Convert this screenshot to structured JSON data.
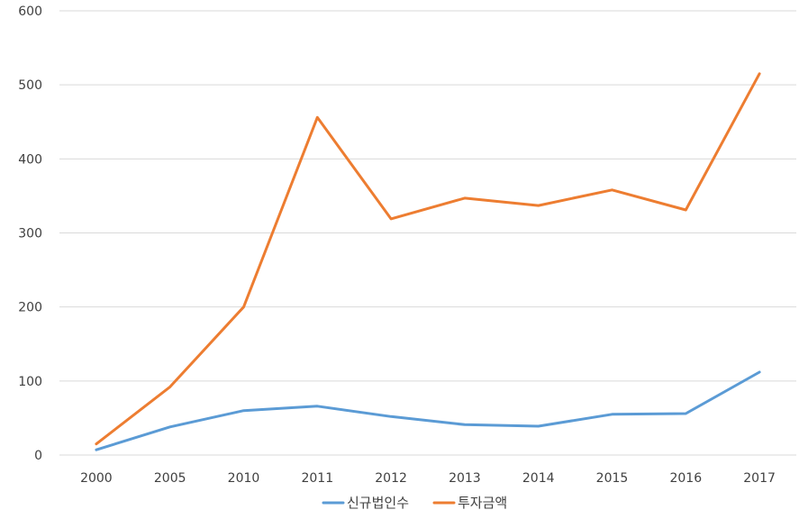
{
  "chart_data": {
    "type": "line",
    "title": "",
    "xlabel": "",
    "ylabel": "",
    "x": [
      "2000",
      "2005",
      "2010",
      "2011",
      "2012",
      "2013",
      "2014",
      "2015",
      "2016",
      "2017"
    ],
    "ylim": [
      0,
      600
    ],
    "yticks": [
      0,
      100,
      200,
      300,
      400,
      500,
      600
    ],
    "grid": true,
    "legend_position": "bottom",
    "series": [
      {
        "name": "신규법인수",
        "color": "#5b9bd5",
        "values": [
          7,
          38,
          60,
          66,
          52,
          41,
          39,
          55,
          56,
          112
        ]
      },
      {
        "name": "투자금액",
        "color": "#ed7d31",
        "values": [
          15,
          92,
          200,
          456,
          319,
          347,
          337,
          358,
          331,
          515
        ]
      }
    ]
  }
}
